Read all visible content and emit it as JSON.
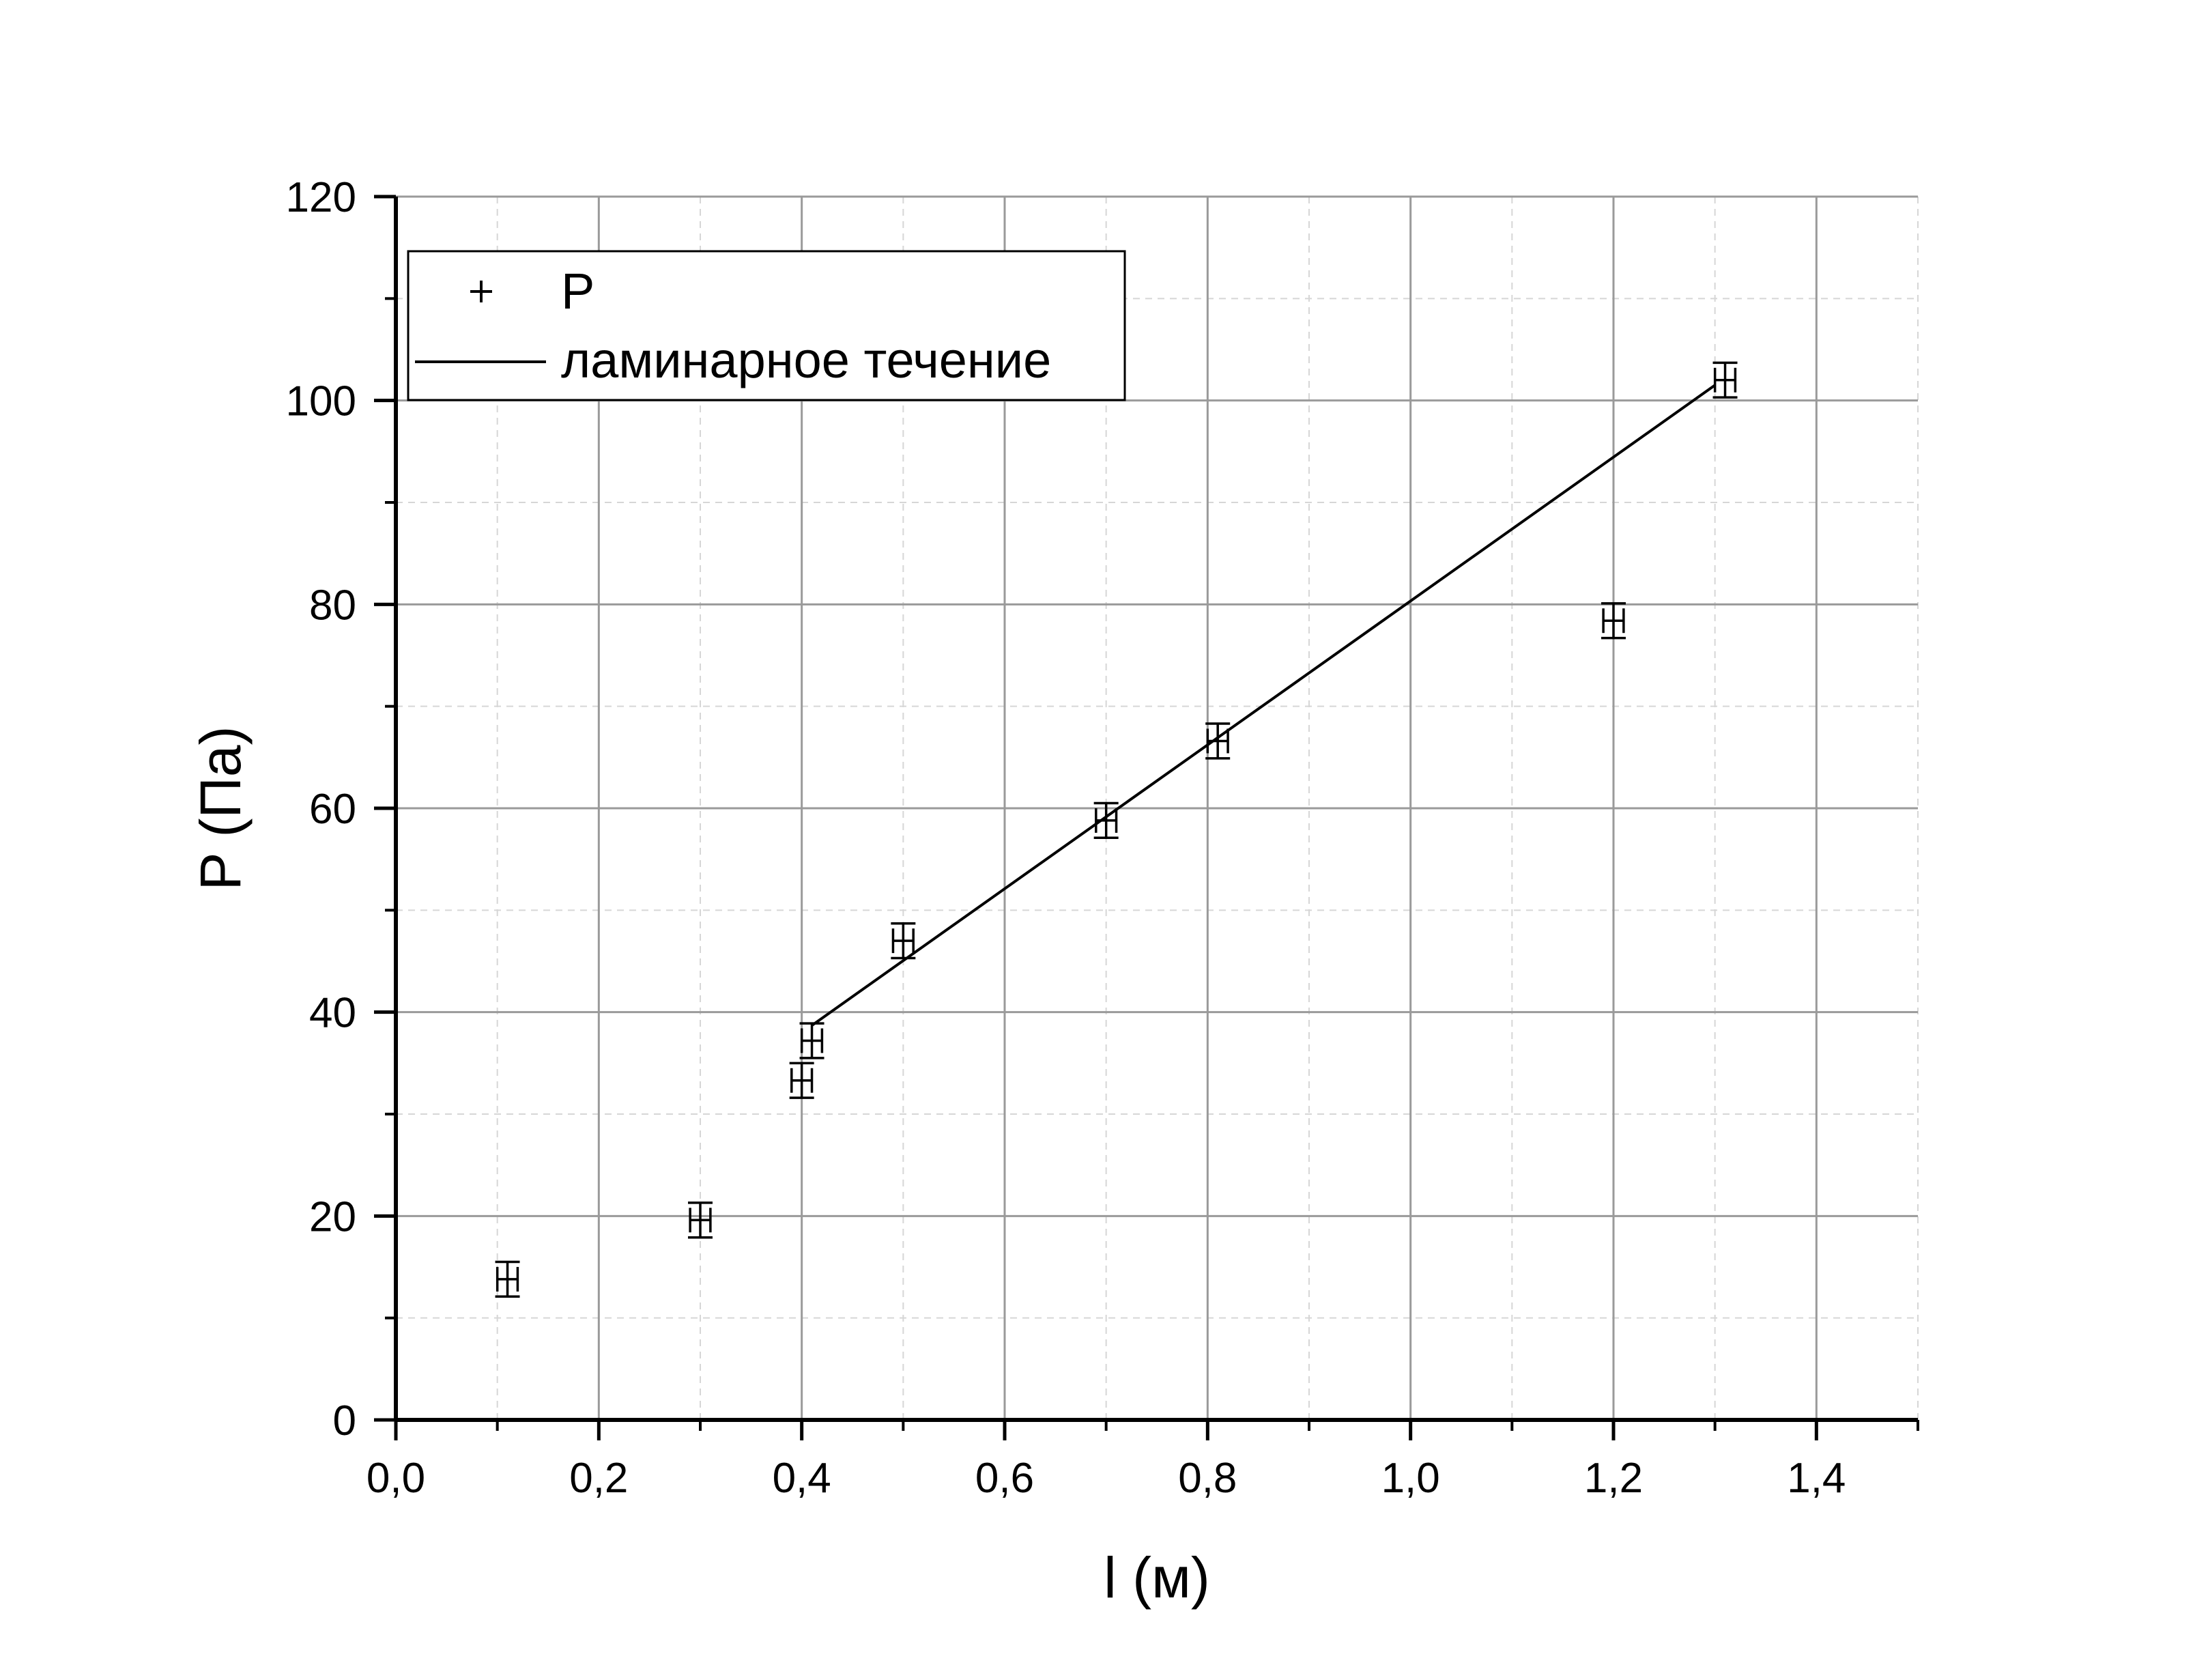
{
  "chart_data": {
    "type": "scatter",
    "xlabel": "l (м)",
    "ylabel": "P (Па)",
    "xlim": [
      0,
      1.5
    ],
    "ylim": [
      0,
      120
    ],
    "x_ticks": [
      0,
      0.2,
      0.4,
      0.6,
      0.8,
      1.0,
      1.2,
      1.4
    ],
    "x_tick_labels": [
      "0,0",
      "0,2",
      "0,4",
      "0,6",
      "0,8",
      "1,0",
      "1,2",
      "1,4"
    ],
    "y_ticks": [
      0,
      20,
      40,
      60,
      80,
      100,
      120
    ],
    "y_tick_labels": [
      "0",
      "20",
      "40",
      "60",
      "80",
      "100",
      "120"
    ],
    "grid": true,
    "legend_position": "top-left",
    "series": [
      {
        "name": "P",
        "kind": "points-with-error-bars",
        "marker": "+",
        "points": [
          {
            "x": 0.11,
            "y": 13.8
          },
          {
            "x": 0.3,
            "y": 19.6
          },
          {
            "x": 0.4,
            "y": 33.3
          },
          {
            "x": 0.41,
            "y": 37.2
          },
          {
            "x": 0.5,
            "y": 47.0
          },
          {
            "x": 0.7,
            "y": 58.8
          },
          {
            "x": 0.81,
            "y": 66.6
          },
          {
            "x": 1.2,
            "y": 78.4
          },
          {
            "x": 1.31,
            "y": 102.0
          }
        ],
        "x_error": 0.01,
        "y_error": 1.7
      },
      {
        "name": "ламинарное течение",
        "kind": "line",
        "points": [
          {
            "x": 0.41,
            "y": 38.7
          },
          {
            "x": 1.3,
            "y": 101.5
          }
        ]
      }
    ]
  }
}
